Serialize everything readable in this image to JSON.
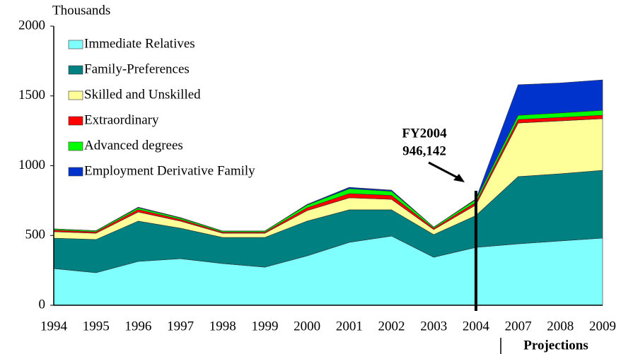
{
  "chart_data": {
    "type": "stacked-area",
    "y_axis_label": "Thousands",
    "categories": [
      "1994",
      "1995",
      "1996",
      "1997",
      "1998",
      "1999",
      "2000",
      "2001",
      "2002",
      "2003",
      "2004",
      "2007",
      "2008",
      "2009"
    ],
    "series": [
      {
        "name": "Immediate Relatives",
        "color": "#80ffff",
        "values": [
          263,
          233,
          314,
          334,
          299,
          273,
          354,
          451,
          496,
          344,
          415,
          440,
          461,
          481
        ]
      },
      {
        "name": "Family-Preferences",
        "color": "#008080",
        "values": [
          218,
          238,
          289,
          218,
          187,
          213,
          249,
          233,
          188,
          162,
          228,
          482,
          481,
          486
        ]
      },
      {
        "name": "Skilled and Unskilled",
        "color": "#ffff99",
        "values": [
          46,
          45,
          65,
          51,
          30,
          30,
          75,
          86,
          75,
          36,
          76,
          384,
          379,
          370
        ]
      },
      {
        "name": "Extraordinary",
        "color": "#ff0000",
        "values": [
          12,
          10,
          18,
          12,
          8,
          8,
          20,
          30,
          28,
          10,
          18,
          25,
          25,
          25
        ]
      },
      {
        "name": "Advanced degrees",
        "color": "#00ff00",
        "values": [
          8,
          8,
          12,
          10,
          8,
          8,
          20,
          35,
          30,
          8,
          20,
          30,
          32,
          35
        ]
      },
      {
        "name": "Employment Derivative Family",
        "color": "#0033cc",
        "values": [
          0,
          0,
          5,
          3,
          0,
          0,
          5,
          10,
          8,
          0,
          5,
          219,
          215,
          218
        ]
      }
    ],
    "ylim": [
      0,
      2000
    ],
    "yticks": [
      0,
      500,
      1000,
      1500,
      2000
    ],
    "annotations": {
      "label": "FY2004",
      "value": "946,142",
      "marker_category": "2004",
      "projections": "Projections"
    },
    "legend": "upper left"
  }
}
